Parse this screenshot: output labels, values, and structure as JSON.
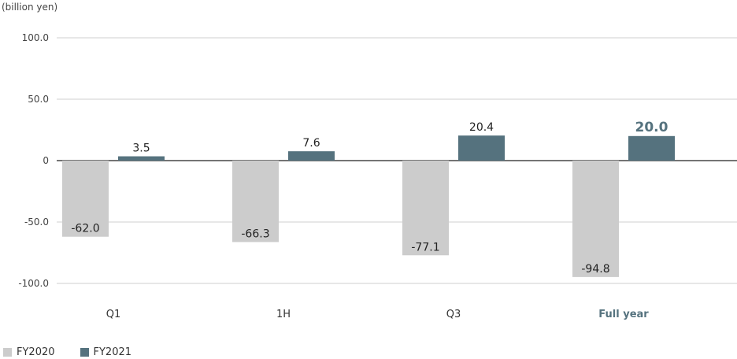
{
  "chart_data": {
    "type": "bar",
    "unit_label": "(billion yen)",
    "categories": [
      "Q1",
      "1H",
      "Q3",
      "Full year"
    ],
    "highlight_category": "Full year",
    "series": [
      {
        "name": "FY2020",
        "color": "#cccccc",
        "values": [
          -62.0,
          -66.3,
          -77.1,
          -94.8
        ]
      },
      {
        "name": "FY2021",
        "color": "#55727e",
        "values": [
          3.5,
          7.6,
          20.4,
          20.0
        ]
      }
    ],
    "ylim": [
      -100,
      100
    ],
    "yticks": [
      100,
      50,
      0,
      -50,
      -100
    ],
    "ytick_labels": [
      "100.0",
      "50.0",
      "0",
      "-50.0",
      "-100.0"
    ],
    "data_labels": [
      [
        "-62.0",
        "-66.3",
        "-77.1",
        "-94.8"
      ],
      [
        "3.5",
        "7.6",
        "20.4",
        "20.0"
      ]
    ],
    "grid": true,
    "legend_position": "bottom-left",
    "highlight_color": "#55727e"
  }
}
